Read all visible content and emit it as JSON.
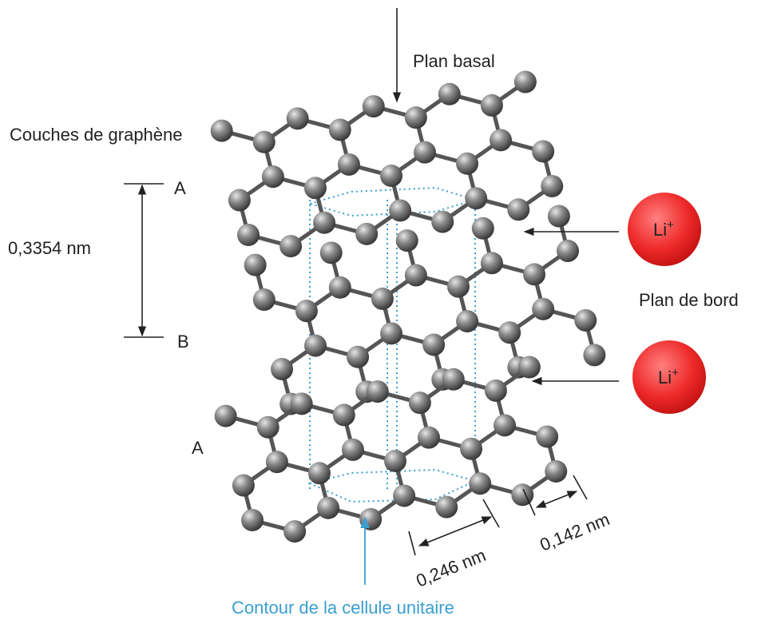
{
  "labels": {
    "basal_plane": "Plan basal",
    "graphene_layers": "Couches de graphène",
    "layer_top": "A",
    "interlayer_distance": "0,3354 nm",
    "layer_middle": "B",
    "layer_bottom": "A",
    "edge_plane": "Plan de bord",
    "lattice_parameter": "0,246 nm",
    "bond_length": "0,142 nm",
    "unit_cell": "Contour de la cellule unitaire"
  },
  "ions": [
    {
      "symbol": "Li",
      "charge": "+"
    },
    {
      "symbol": "Li",
      "charge": "+"
    }
  ]
}
